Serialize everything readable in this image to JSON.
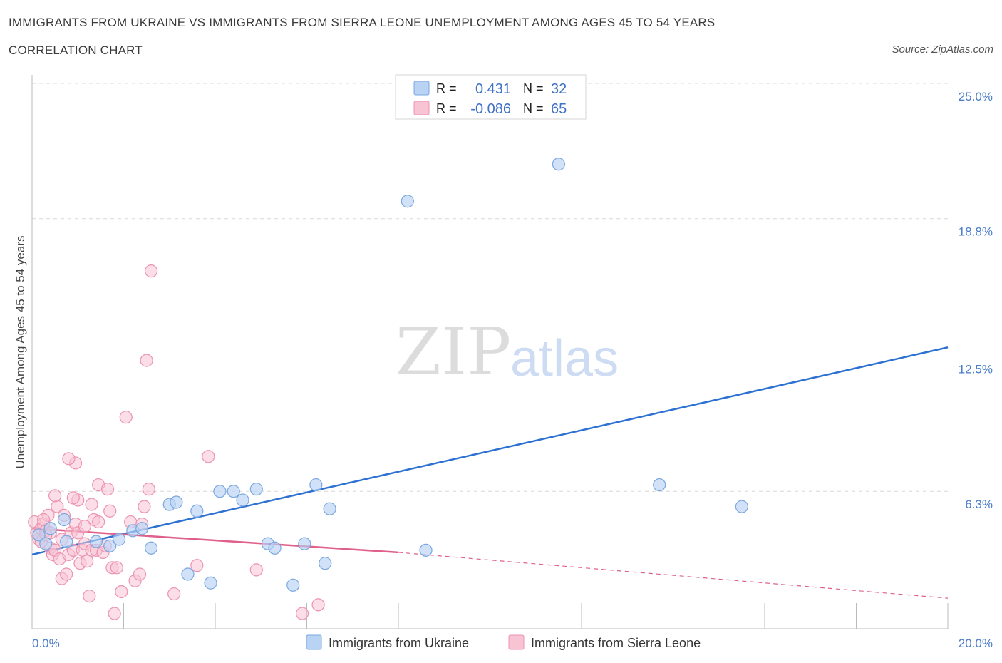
{
  "header": {
    "title": "IMMIGRANTS FROM UKRAINE VS IMMIGRANTS FROM SIERRA LEONE UNEMPLOYMENT AMONG AGES 45 TO 54 YEARS",
    "subtitle": "CORRELATION CHART",
    "source": "Source: ZipAtlas.com"
  },
  "watermark": {
    "part1": "ZIP",
    "part2": "atlas"
  },
  "colors": {
    "ukraine_fill": "#b9d3f5",
    "ukraine_stroke": "#7aa7e0",
    "ukraine_line": "#2d72d2",
    "sierra_fill": "#f8c3d3",
    "sierra_stroke": "#ec93b0",
    "sierra_line": "#e0608c",
    "tick_text": "#4a7cc9",
    "grid": "#d8d8d8"
  },
  "legend": {
    "rows": [
      {
        "r_label": "R =",
        "r_value": "0.431",
        "n_label": "N =",
        "n_value": "32"
      },
      {
        "r_label": "R =",
        "r_value": "-0.086",
        "n_label": "N =",
        "n_value": "65"
      }
    ]
  },
  "chart_data": {
    "type": "scatter",
    "title": "IMMIGRANTS FROM UKRAINE VS IMMIGRANTS FROM SIERRA LEONE UNEMPLOYMENT AMONG AGES 45 TO 54 YEARS",
    "xlabel": "",
    "ylabel": "Unemployment Among Ages 45 to 54 years",
    "xlim": [
      0,
      20
    ],
    "ylim": [
      0,
      25.0
    ],
    "x_tick_labels": {
      "min": "0.0%",
      "max": "20.0%"
    },
    "y_ticks": [
      {
        "value": 6.3,
        "label": "6.3%"
      },
      {
        "value": 12.5,
        "label": "12.5%"
      },
      {
        "value": 18.8,
        "label": "18.8%"
      },
      {
        "value": 25.0,
        "label": "25.0%"
      }
    ],
    "series": [
      {
        "name": "Immigrants from Ukraine",
        "trend": {
          "x0": 0,
          "y0": 3.4,
          "x1": 20,
          "y1": 12.9
        },
        "points": [
          [
            0.15,
            4.3
          ],
          [
            0.4,
            4.6
          ],
          [
            0.7,
            5.0
          ],
          [
            0.75,
            4.0
          ],
          [
            1.4,
            4.0
          ],
          [
            1.7,
            3.8
          ],
          [
            1.9,
            4.1
          ],
          [
            2.2,
            4.5
          ],
          [
            2.4,
            4.6
          ],
          [
            2.6,
            3.7
          ],
          [
            3.0,
            5.7
          ],
          [
            3.15,
            5.8
          ],
          [
            3.6,
            5.4
          ],
          [
            3.4,
            2.5
          ],
          [
            3.9,
            2.1
          ],
          [
            4.1,
            6.3
          ],
          [
            4.4,
            6.3
          ],
          [
            4.6,
            5.9
          ],
          [
            4.9,
            6.4
          ],
          [
            5.15,
            3.9
          ],
          [
            5.3,
            3.7
          ],
          [
            5.7,
            2.0
          ],
          [
            5.95,
            3.9
          ],
          [
            6.2,
            6.6
          ],
          [
            6.4,
            3.0
          ],
          [
            6.5,
            5.5
          ],
          [
            8.6,
            3.6
          ],
          [
            8.2,
            19.6
          ],
          [
            11.5,
            21.3
          ],
          [
            13.7,
            6.6
          ],
          [
            15.5,
            5.6
          ],
          [
            0.3,
            3.9
          ]
        ]
      },
      {
        "name": "Immigrants from Sierra Leone",
        "trend": {
          "x0": 0,
          "y0": 4.6,
          "x1": 8.0,
          "y1": 3.5
        },
        "trend_extension": {
          "x0": 8.0,
          "y0": 3.5,
          "x1": 20,
          "y1": 1.4
        },
        "points": [
          [
            0.05,
            4.9
          ],
          [
            0.1,
            4.4
          ],
          [
            0.15,
            4.1
          ],
          [
            0.2,
            4.6
          ],
          [
            0.25,
            4.8
          ],
          [
            0.3,
            4.5
          ],
          [
            0.35,
            5.2
          ],
          [
            0.4,
            3.7
          ],
          [
            0.45,
            3.4
          ],
          [
            0.5,
            3.6
          ],
          [
            0.55,
            5.6
          ],
          [
            0.6,
            3.2
          ],
          [
            0.65,
            2.3
          ],
          [
            0.7,
            5.2
          ],
          [
            0.75,
            2.5
          ],
          [
            0.8,
            3.4
          ],
          [
            0.85,
            4.4
          ],
          [
            0.9,
            3.6
          ],
          [
            0.95,
            4.8
          ],
          [
            1.0,
            4.4
          ],
          [
            1.05,
            3.0
          ],
          [
            1.1,
            3.6
          ],
          [
            1.15,
            3.9
          ],
          [
            1.2,
            3.1
          ],
          [
            1.25,
            1.5
          ],
          [
            1.3,
            3.6
          ],
          [
            1.35,
            5.0
          ],
          [
            1.4,
            3.6
          ],
          [
            1.45,
            6.6
          ],
          [
            1.55,
            3.5
          ],
          [
            1.6,
            3.8
          ],
          [
            1.65,
            6.4
          ],
          [
            1.7,
            5.4
          ],
          [
            1.75,
            2.8
          ],
          [
            1.85,
            2.8
          ],
          [
            1.95,
            1.7
          ],
          [
            2.05,
            9.7
          ],
          [
            2.15,
            4.9
          ],
          [
            2.25,
            2.2
          ],
          [
            2.35,
            2.5
          ],
          [
            2.45,
            5.6
          ],
          [
            2.55,
            6.4
          ],
          [
            2.6,
            16.4
          ],
          [
            2.5,
            12.3
          ],
          [
            3.1,
            1.6
          ],
          [
            3.6,
            2.9
          ],
          [
            3.85,
            7.9
          ],
          [
            4.9,
            2.7
          ],
          [
            5.9,
            0.7
          ],
          [
            6.25,
            1.1
          ],
          [
            1.8,
            0.7
          ],
          [
            0.95,
            7.6
          ],
          [
            1.0,
            5.9
          ],
          [
            0.2,
            4.0
          ],
          [
            0.4,
            4.4
          ],
          [
            0.25,
            5.0
          ],
          [
            0.3,
            4.3
          ],
          [
            1.3,
            5.7
          ],
          [
            0.9,
            6.0
          ],
          [
            0.8,
            7.8
          ],
          [
            1.45,
            4.9
          ],
          [
            2.4,
            4.8
          ],
          [
            1.15,
            4.7
          ],
          [
            0.5,
            6.1
          ],
          [
            0.65,
            4.1
          ]
        ]
      }
    ]
  },
  "bottom_legend": [
    {
      "label": "Immigrants from Ukraine"
    },
    {
      "label": "Immigrants from Sierra Leone"
    }
  ]
}
